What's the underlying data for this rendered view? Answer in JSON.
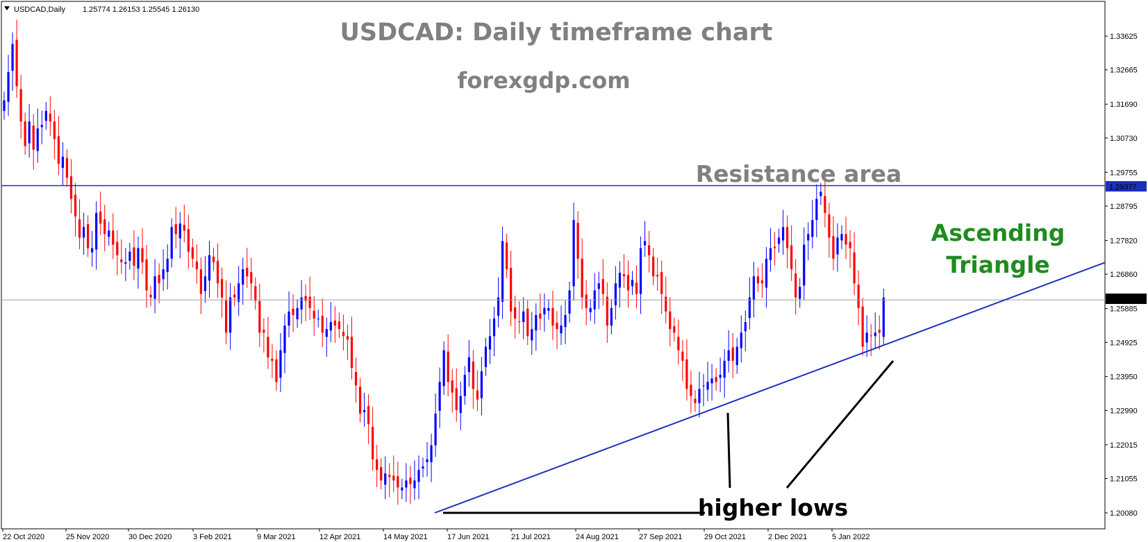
{
  "header": {
    "symbol_label": "USDCAD,Daily",
    "ohlc": "1.25774 1.26153 1.25545 1.26130"
  },
  "annotations": {
    "title": "USDCAD: Daily timeframe chart",
    "source": "forexgdp.com",
    "resistance": "Resistance area",
    "pattern_line1": "Ascending",
    "pattern_line2": "Triangle",
    "higher_lows": "higher lows"
  },
  "colors": {
    "bull": "#0000ff",
    "bear": "#ff0000",
    "trendline": "#1c2fbf",
    "resistance_line": "#1c2fbf",
    "price_line": "#a0a0a0",
    "grey_text": "#808080",
    "green_text": "#1e8c1e"
  },
  "chart_data": {
    "type": "candlestick",
    "title": "USDCAD: Daily timeframe chart",
    "ylim": [
      1.2008,
      1.341
    ],
    "y_ticks": [
      "1.33625",
      "1.32665",
      "1.31690",
      "1.30730",
      "1.29755",
      "1.28795",
      "1.27820",
      "1.26860",
      "1.25885",
      "1.24925",
      "1.23950",
      "1.22990",
      "1.22015",
      "1.21055",
      "1.20080"
    ],
    "x_ticks": [
      "22 Oct 2020",
      "25 Nov 2020",
      "30 Dec 2020",
      "3 Feb 2021",
      "9 Mar 2021",
      "12 Apr 2021",
      "14 May 2021",
      "17 Jun 2021",
      "21 Jul 2021",
      "24 Aug 2021",
      "27 Sep 2021",
      "29 Oct 2021",
      "2 Dec 2021",
      "5 Jan 2022"
    ],
    "resistance_level": 1.29377,
    "resistance_label": "1.29377",
    "current_price": 1.2613,
    "current_label": "1.26130",
    "trendline": {
      "from": [
        "13 May 2021",
        1.2008
      ],
      "to": [
        "15 Jan 2022",
        1.249
      ]
    },
    "higher_lows": [
      [
        "6 Oct 2021",
        1.229
      ],
      [
        "12 Jan 2022",
        1.246
      ]
    ],
    "closes": [
      1.318,
      1.326,
      1.334,
      1.322,
      1.312,
      1.305,
      1.312,
      1.304,
      1.31,
      1.311,
      1.315,
      1.312,
      1.307,
      1.3,
      1.302,
      1.296,
      1.29,
      1.285,
      1.279,
      1.282,
      1.276,
      1.276,
      1.286,
      1.283,
      1.28,
      1.281,
      1.277,
      1.274,
      1.272,
      1.272,
      1.275,
      1.271,
      1.276,
      1.272,
      1.264,
      1.262,
      1.268,
      1.266,
      1.27,
      1.273,
      1.282,
      1.28,
      1.283,
      1.281,
      1.275,
      1.273,
      1.27,
      1.263,
      1.268,
      1.274,
      1.272,
      1.266,
      1.262,
      1.252,
      1.262,
      1.262,
      1.266,
      1.27,
      1.268,
      1.266,
      1.261,
      1.252,
      1.252,
      1.245,
      1.244,
      1.238,
      1.247,
      1.254,
      1.258,
      1.257,
      1.259,
      1.262,
      1.261,
      1.259,
      1.256,
      1.256,
      1.252,
      1.253,
      1.255,
      1.254,
      1.253,
      1.251,
      1.25,
      1.242,
      1.237,
      1.229,
      1.23,
      1.226,
      1.216,
      1.213,
      1.21,
      1.212,
      1.211,
      1.21,
      1.208,
      1.208,
      1.21,
      1.209,
      1.21,
      1.213,
      1.214,
      1.216,
      1.22,
      1.229,
      1.238,
      1.247,
      1.238,
      1.235,
      1.23,
      1.234,
      1.24,
      1.245,
      1.236,
      1.233,
      1.241,
      1.248,
      1.251,
      1.256,
      1.262,
      1.278,
      1.27,
      1.258,
      1.256,
      1.255,
      1.258,
      1.251,
      1.253,
      1.257,
      1.256,
      1.259,
      1.259,
      1.254,
      1.253,
      1.254,
      1.257,
      1.264,
      1.284,
      1.273,
      1.262,
      1.259,
      1.259,
      1.264,
      1.266,
      1.263,
      1.254,
      1.259,
      1.266,
      1.269,
      1.268,
      1.264,
      1.267,
      1.263,
      1.276,
      1.278,
      1.274,
      1.268,
      1.268,
      1.263,
      1.258,
      1.253,
      1.252,
      1.247,
      1.244,
      1.236,
      1.234,
      1.232,
      1.236,
      1.237,
      1.238,
      1.239,
      1.238,
      1.24,
      1.244,
      1.247,
      1.244,
      1.248,
      1.252,
      1.255,
      1.262,
      1.268,
      1.266,
      1.266,
      1.273,
      1.276,
      1.276,
      1.279,
      1.282,
      1.276,
      1.27,
      1.262,
      1.265,
      1.277,
      1.28,
      1.284,
      1.29,
      1.292,
      1.286,
      1.279,
      1.273,
      1.279,
      1.28,
      1.277,
      1.276,
      1.266,
      1.259,
      1.248,
      1.252,
      1.251,
      1.252,
      1.252,
      1.262
    ]
  }
}
